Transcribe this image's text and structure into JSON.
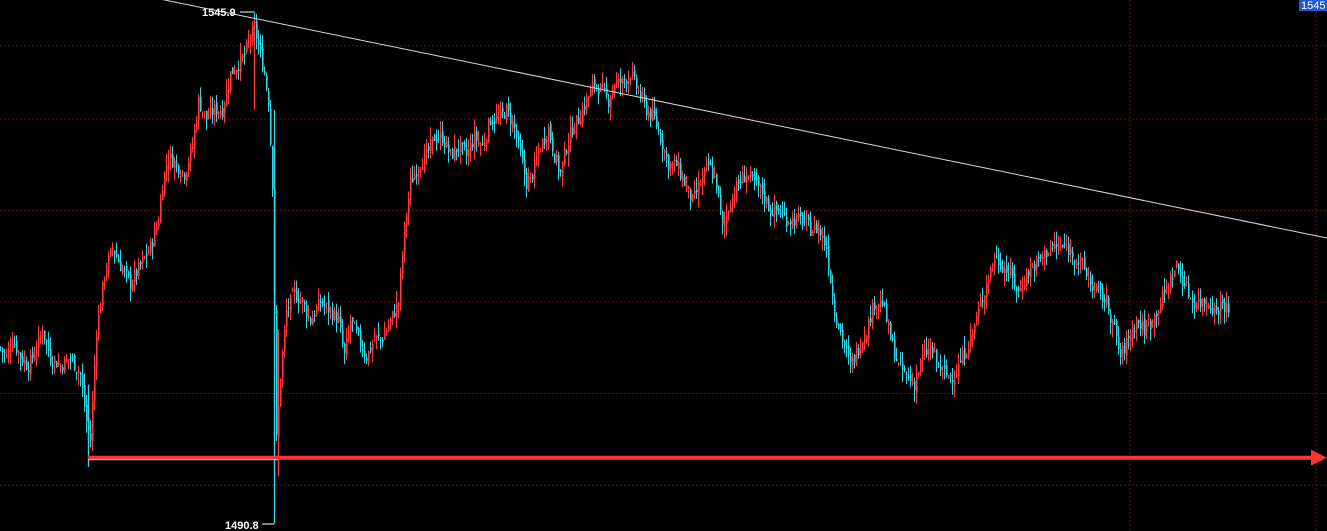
{
  "chart_data": {
    "type": "candlestick",
    "colors": {
      "up": "#ff3b3b",
      "down": "#33d6e6",
      "background": "#000000",
      "grid": "#6b1010",
      "trendline": "#d9d9d9",
      "support_arrow": "#ff3333",
      "price_tag_bg": "#1e5ad6"
    },
    "grid": true,
    "price_tag": "1545",
    "annotations": {
      "high_label": "1545.9",
      "low_label": "1490.8",
      "high_value": 1545.9,
      "low_value": 1490.8
    },
    "trendline": {
      "from": {
        "bar": 120,
        "price": 1549.0
      },
      "to": {
        "bar": 1327,
        "price": 1522.0
      }
    },
    "support_line": {
      "from_bar": 88,
      "price": 1498.0
    },
    "ylim": [
      1490.0,
      1548.0
    ],
    "bars_shown": 1327,
    "closes": [
      [
        0,
        1510
      ],
      [
        6,
        1509
      ],
      [
        12,
        1511
      ],
      [
        20,
        1509
      ],
      [
        28,
        1508
      ],
      [
        36,
        1510
      ],
      [
        42,
        1512
      ],
      [
        50,
        1509
      ],
      [
        60,
        1508
      ],
      [
        70,
        1509
      ],
      [
        80,
        1507
      ],
      [
        86,
        1502
      ],
      [
        90,
        1500
      ],
      [
        96,
        1512
      ],
      [
        104,
        1518
      ],
      [
        112,
        1521
      ],
      [
        120,
        1519
      ],
      [
        130,
        1517
      ],
      [
        140,
        1519
      ],
      [
        150,
        1521
      ],
      [
        158,
        1524
      ],
      [
        162,
        1528
      ],
      [
        168,
        1531
      ],
      [
        176,
        1530
      ],
      [
        184,
        1529
      ],
      [
        192,
        1532
      ],
      [
        198,
        1537
      ],
      [
        206,
        1535
      ],
      [
        214,
        1536
      ],
      [
        222,
        1536
      ],
      [
        230,
        1540
      ],
      [
        238,
        1541
      ],
      [
        244,
        1542
      ],
      [
        250,
        1544
      ],
      [
        254,
        1545
      ],
      [
        258,
        1543
      ],
      [
        264,
        1540
      ],
      [
        268,
        1537
      ],
      [
        272,
        1528
      ],
      [
        276,
        1500
      ],
      [
        280,
        1507
      ],
      [
        286,
        1514
      ],
      [
        294,
        1516
      ],
      [
        302,
        1515
      ],
      [
        310,
        1513
      ],
      [
        320,
        1515
      ],
      [
        330,
        1514
      ],
      [
        338,
        1513
      ],
      [
        344,
        1509
      ],
      [
        350,
        1513
      ],
      [
        358,
        1511
      ],
      [
        366,
        1509
      ],
      [
        374,
        1511
      ],
      [
        382,
        1511
      ],
      [
        390,
        1513
      ],
      [
        398,
        1515
      ],
      [
        404,
        1523
      ],
      [
        410,
        1528
      ],
      [
        418,
        1530
      ],
      [
        426,
        1531
      ],
      [
        434,
        1533
      ],
      [
        442,
        1533
      ],
      [
        450,
        1531
      ],
      [
        458,
        1532
      ],
      [
        466,
        1531
      ],
      [
        474,
        1533
      ],
      [
        482,
        1532
      ],
      [
        490,
        1535
      ],
      [
        498,
        1535
      ],
      [
        506,
        1536
      ],
      [
        514,
        1534
      ],
      [
        520,
        1531
      ],
      [
        526,
        1528
      ],
      [
        532,
        1529
      ],
      [
        540,
        1532
      ],
      [
        548,
        1534
      ],
      [
        554,
        1531
      ],
      [
        560,
        1529
      ],
      [
        566,
        1532
      ],
      [
        572,
        1534
      ],
      [
        578,
        1535
      ],
      [
        586,
        1537
      ],
      [
        594,
        1539
      ],
      [
        602,
        1538
      ],
      [
        608,
        1537
      ],
      [
        614,
        1539
      ],
      [
        622,
        1539
      ],
      [
        630,
        1540
      ],
      [
        638,
        1538
      ],
      [
        646,
        1536
      ],
      [
        654,
        1535
      ],
      [
        660,
        1533
      ],
      [
        668,
        1530
      ],
      [
        676,
        1530
      ],
      [
        684,
        1528
      ],
      [
        692,
        1526
      ],
      [
        700,
        1528
      ],
      [
        708,
        1530
      ],
      [
        716,
        1528
      ],
      [
        722,
        1523
      ],
      [
        730,
        1526
      ],
      [
        738,
        1528
      ],
      [
        746,
        1529
      ],
      [
        754,
        1528
      ],
      [
        762,
        1527
      ],
      [
        770,
        1525
      ],
      [
        778,
        1525
      ],
      [
        786,
        1524
      ],
      [
        794,
        1524
      ],
      [
        802,
        1524
      ],
      [
        810,
        1523
      ],
      [
        818,
        1523
      ],
      [
        826,
        1521
      ],
      [
        834,
        1514
      ],
      [
        842,
        1511
      ],
      [
        850,
        1508
      ],
      [
        858,
        1510
      ],
      [
        866,
        1512
      ],
      [
        874,
        1515
      ],
      [
        882,
        1515
      ],
      [
        890,
        1511
      ],
      [
        898,
        1508
      ],
      [
        906,
        1507
      ],
      [
        914,
        1506
      ],
      [
        922,
        1509
      ],
      [
        930,
        1510
      ],
      [
        938,
        1508
      ],
      [
        946,
        1507
      ],
      [
        954,
        1507
      ],
      [
        962,
        1509
      ],
      [
        970,
        1511
      ],
      [
        978,
        1514
      ],
      [
        986,
        1517
      ],
      [
        994,
        1520
      ],
      [
        1002,
        1519
      ],
      [
        1010,
        1518
      ],
      [
        1018,
        1516
      ],
      [
        1026,
        1518
      ],
      [
        1034,
        1519
      ],
      [
        1042,
        1520
      ],
      [
        1050,
        1521
      ],
      [
        1058,
        1521
      ],
      [
        1066,
        1521
      ],
      [
        1074,
        1520
      ],
      [
        1082,
        1519
      ],
      [
        1090,
        1517
      ],
      [
        1098,
        1516
      ],
      [
        1106,
        1515
      ],
      [
        1114,
        1512
      ],
      [
        1120,
        1509
      ],
      [
        1128,
        1511
      ],
      [
        1136,
        1513
      ],
      [
        1144,
        1512
      ],
      [
        1152,
        1513
      ],
      [
        1160,
        1515
      ],
      [
        1168,
        1517
      ],
      [
        1176,
        1519
      ],
      [
        1184,
        1517
      ],
      [
        1192,
        1515
      ],
      [
        1200,
        1515
      ],
      [
        1208,
        1515
      ],
      [
        1216,
        1514
      ],
      [
        1222,
        1515
      ],
      [
        1228,
        1514
      ]
    ]
  }
}
